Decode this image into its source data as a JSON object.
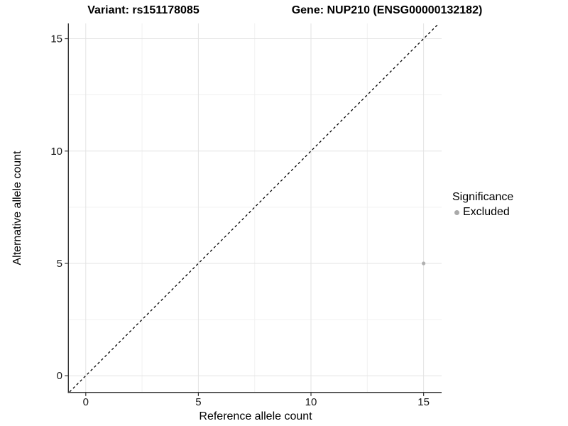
{
  "chart_data": {
    "type": "scatter",
    "titles": [
      "Variant: rs151178085",
      "Gene: NUP210 (ENSG00000132182)"
    ],
    "xlabel": "Reference allele count",
    "ylabel": "Alternative allele count",
    "xlim": [
      -0.75,
      15.8
    ],
    "ylim": [
      -0.72,
      15.68
    ],
    "xticks": [
      0,
      5,
      10,
      15
    ],
    "yticks": [
      0,
      5,
      10,
      15
    ],
    "xminor": [
      2.5,
      7.5,
      12.5
    ],
    "yminor": [
      2.5,
      7.5,
      12.5
    ],
    "grid": true,
    "points": [
      {
        "x": 15,
        "y": 5,
        "series": "Excluded"
      }
    ],
    "reference_line": {
      "slope": 1,
      "intercept": 0,
      "style": "dashed",
      "color": "#000000"
    },
    "legend": {
      "position": "right",
      "title": "Significance",
      "items": [
        {
          "label": "Excluded",
          "color": "#aaaaaa",
          "marker": "circle"
        }
      ]
    },
    "colors": {
      "point": "#b0b0b0",
      "grid_major": "#e3e3e3",
      "grid_minor": "#f1f1f1",
      "axis_line": "#333333",
      "tick_label": "#1a1a1a"
    }
  }
}
